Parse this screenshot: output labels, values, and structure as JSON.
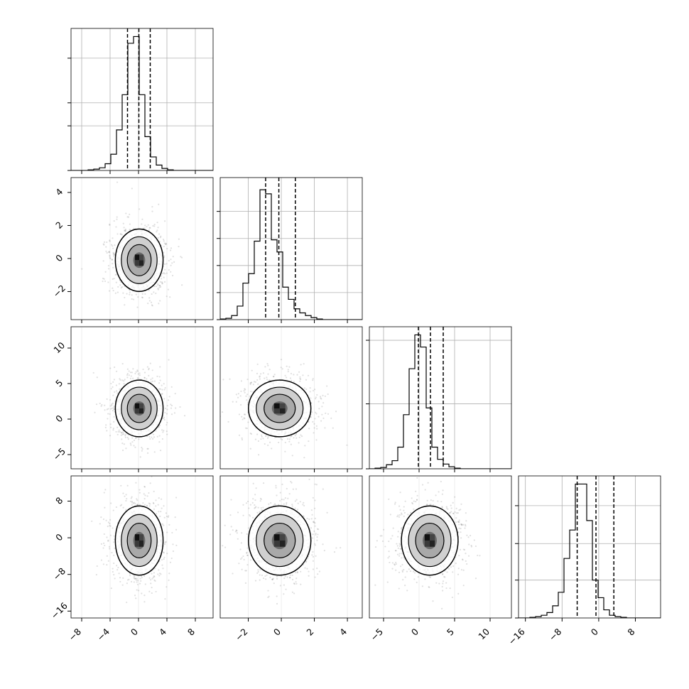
{
  "chart_data": {
    "type": "corner",
    "grid": true,
    "marginal_quantile_lines": "dashed",
    "parameters": [
      {
        "range": [
          -9.5,
          10.5
        ],
        "ticks": [
          -8,
          -4,
          0,
          4,
          8
        ],
        "tick_labels": [
          "−8",
          "−4",
          "0",
          "4",
          "8"
        ],
        "quantiles": [
          -1.55,
          0.05,
          1.65
        ],
        "hist_peak": 1.0,
        "hist_ticks": [
          0.33,
          0.5,
          0.83
        ],
        "hist_bins": {
          "x0": -9.5,
          "width": 0.8,
          "values": [
            0.0,
            0.0,
            0.0,
            0.005,
            0.01,
            0.02,
            0.05,
            0.12,
            0.3,
            0.56,
            0.94,
            0.99,
            0.56,
            0.25,
            0.1,
            0.04,
            0.015,
            0.005,
            0.0,
            0.0,
            0.0,
            0.0,
            0.0,
            0.0,
            0.0
          ]
        },
        "mean": 0.1,
        "sigma": 1.6
      },
      {
        "range": [
          -3.7,
          4.9
        ],
        "ticks": [
          -2,
          0,
          2,
          4
        ],
        "tick_labels": [
          "−2",
          "0",
          "2",
          "4"
        ],
        "quantiles": [
          -0.95,
          -0.15,
          0.85
        ],
        "hist_peak": 1.0,
        "hist_ticks": [
          0.2,
          0.4,
          0.6,
          0.8
        ],
        "hist_bins": {
          "x0": -3.7,
          "width": 0.344,
          "values": [
            0.005,
            0.01,
            0.03,
            0.1,
            0.27,
            0.34,
            0.58,
            0.96,
            0.93,
            0.59,
            0.5,
            0.24,
            0.15,
            0.08,
            0.05,
            0.03,
            0.015,
            0.005,
            0.0,
            0.0,
            0.0,
            0.0,
            0.0,
            0.0,
            0.0
          ]
        },
        "mean": -0.1,
        "sigma": 0.9
      },
      {
        "range": [
          -7.0,
          13.0
        ],
        "ticks": [
          -5,
          0,
          5,
          10
        ],
        "tick_labels": [
          "−5",
          "0",
          "5",
          "10"
        ],
        "quantiles": [
          -0.1,
          1.6,
          3.4
        ],
        "hist_peak": 1.0,
        "hist_ticks": [
          0.48,
          0.95
        ],
        "hist_bins": {
          "x0": -7.0,
          "width": 0.8,
          "values": [
            0.0,
            0.005,
            0.01,
            0.03,
            0.06,
            0.16,
            0.4,
            0.74,
            0.99,
            0.9,
            0.45,
            0.16,
            0.07,
            0.035,
            0.015,
            0.005,
            0.0,
            0.0,
            0.0,
            0.0,
            0.0,
            0.0,
            0.0,
            0.0,
            0.0
          ]
        },
        "mean": 1.5,
        "sigma": 1.9
      },
      {
        "range": [
          -17.5,
          13.5
        ],
        "ticks": [
          -16,
          -8,
          0,
          8
        ],
        "tick_labels": [
          "−16",
          "−8",
          "0",
          "8"
        ],
        "quantiles": [
          -4.7,
          -0.6,
          3.3
        ],
        "hist_peak": 1.0,
        "hist_ticks": [
          0.28,
          0.55,
          0.83
        ],
        "hist_bins": {
          "x0": -17.5,
          "width": 1.24,
          "values": [
            0.0,
            0.0,
            0.005,
            0.01,
            0.02,
            0.04,
            0.09,
            0.19,
            0.44,
            0.65,
            0.99,
            0.99,
            0.72,
            0.28,
            0.15,
            0.06,
            0.02,
            0.01,
            0.005,
            0.0,
            0.0,
            0.0,
            0.0,
            0.0,
            0.0
          ]
        },
        "mean": -0.6,
        "sigma": 3.6
      }
    ]
  }
}
